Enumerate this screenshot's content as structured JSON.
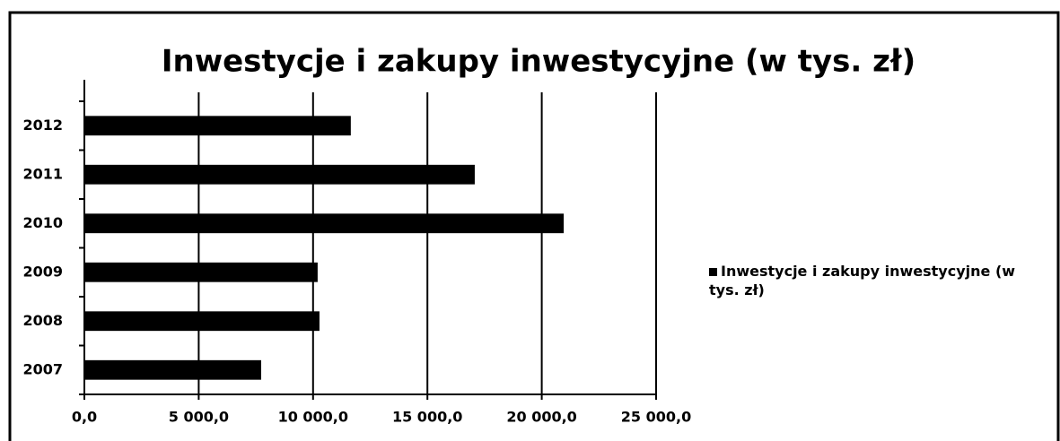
{
  "chart_data": {
    "type": "bar",
    "orientation": "horizontal",
    "title": "Inwestycje i zakupy inwestycyjne  (w tys. zł)",
    "categories": [
      "2007",
      "2008",
      "2009",
      "2010",
      "2011",
      "2012"
    ],
    "series": [
      {
        "name": "Inwestycje i zakupy inwestycyjne  (w tys. zł)",
        "color": "#000000",
        "values": [
          7730,
          10280,
          10200,
          20960,
          17070,
          11650
        ]
      }
    ],
    "xlim": [
      0,
      25000
    ],
    "xticks": [
      {
        "value": 0,
        "label": "0,0"
      },
      {
        "value": 5000,
        "label": "5 000,0"
      },
      {
        "value": 10000,
        "label": "10 000,0"
      },
      {
        "value": 15000,
        "label": "15 000,0"
      },
      {
        "value": 20000,
        "label": "20 000,0"
      },
      {
        "value": 25000,
        "label": "25 000,0"
      }
    ],
    "grid": true,
    "legend": "right"
  }
}
